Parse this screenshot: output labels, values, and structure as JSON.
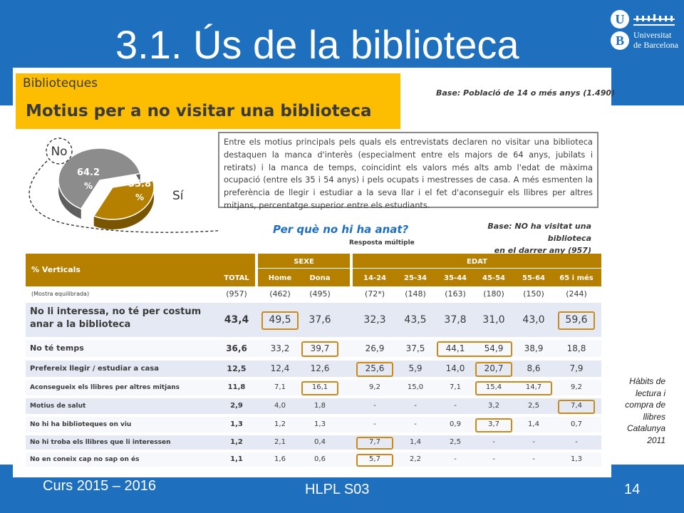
{
  "slide": {
    "title": "3.1. Ús de la biblioteca",
    "footer_left": "Curs 2015 – 2016",
    "footer_center": "HLPL S03",
    "page_number": "14",
    "side_note": "Hàbits de lectura i compra de llibres Catalunya 2011",
    "logo": {
      "letter_u": "U",
      "letter_b": "B",
      "line1": "Universitat",
      "line2": "de Barcelona"
    }
  },
  "colors": {
    "band": "#1f6fbf",
    "accent": "#fdbd00",
    "table_header": "#b57f00",
    "highlight": "#c98a1a",
    "row_shade": "#e4e9f3"
  },
  "header": {
    "section": "Biblioteques",
    "heading": "Motius per a no visitar una biblioteca",
    "base": "Base: Població de 14 o més anys (1.490)"
  },
  "summary_text": "Entre els motius principals pels quals els entrevistats declaren no visitar una biblioteca destaquen la manca d'interès (especialment entre els majors de 64 anys, jubilats i retirats) i la manca de temps, coincidint els valors més alts amb l'edat de màxima ocupació (entre els 35 i 54 anys) i pels ocupats i mestresses de casa. A més esmenten la preferència de llegir i estudiar a la seva llar i el fet d'aconseguir els llibres per altres mitjans, percentatge superior entre els estudiants.",
  "chart_data": {
    "type": "pie",
    "labels": [
      "No",
      "Sí"
    ],
    "values": [
      64.2,
      35.8
    ],
    "value_labels": [
      "64.2 %",
      "35.8 %"
    ],
    "colors": [
      "#8c8c8c",
      "#b57f00"
    ]
  },
  "question": {
    "title": "Per què no hi ha anat?",
    "subtitle": "Resposta múltiple",
    "base_line1": "Base: NO ha visitat una biblioteca",
    "base_line2": "en el darrer any (957)"
  },
  "table": {
    "corner_label": "% Verticals",
    "group_labels": {
      "sexe": "SEXE",
      "edat": "EDAT"
    },
    "columns": [
      "TOTAL",
      "Home",
      "Dona",
      "14-24",
      "25-34",
      "35-44",
      "45-54",
      "55-64",
      "65 i més"
    ],
    "sample_label": "(Mostra equilibrada)",
    "sample_sizes": [
      "(957)",
      "(462)",
      "(495)",
      "(72*)",
      "(148)",
      "(163)",
      "(180)",
      "(150)",
      "(244)"
    ],
    "rows": [
      {
        "label": "No li interessa, no té per costum anar a la biblioteca",
        "values": [
          "43,4",
          "49,5",
          "37,6",
          "32,3",
          "43,5",
          "37,8",
          "31,0",
          "43,0",
          "59,6"
        ]
      },
      {
        "label": "No té temps",
        "values": [
          "36,6",
          "33,2",
          "39,7",
          "26,9",
          "37,5",
          "44,1",
          "54,9",
          "38,9",
          "18,8"
        ]
      },
      {
        "label": "Prefereix llegir / estudiar a casa",
        "values": [
          "12,5",
          "12,4",
          "12,6",
          "25,6",
          "5,9",
          "14,0",
          "20,7",
          "8,6",
          "7,9"
        ]
      },
      {
        "label": "Aconsegueix els llibres per altres mitjans",
        "values": [
          "11,8",
          "7,1",
          "16,1",
          "9,2",
          "15,0",
          "7,1",
          "15,4",
          "14,7",
          "9,2"
        ]
      },
      {
        "label": "Motius de salut",
        "values": [
          "2,9",
          "4,0",
          "1,8",
          "-",
          "-",
          "-",
          "3,2",
          "2,5",
          "7,4"
        ]
      },
      {
        "label": "No hi ha biblioteques on viu",
        "values": [
          "1,3",
          "1,2",
          "1,3",
          "-",
          "-",
          "0,9",
          "3,7",
          "1,4",
          "0,7"
        ]
      },
      {
        "label": "No hi troba els llibres que li interessen",
        "values": [
          "1,2",
          "2,1",
          "0,4",
          "7,7",
          "1,4",
          "2,5",
          "-",
          "-",
          "-"
        ]
      },
      {
        "label": "No en coneix cap no sap on és",
        "values": [
          "1,1",
          "1,6",
          "0,6",
          "5,7",
          "2,2",
          "-",
          "-",
          "-",
          "1,3"
        ]
      }
    ]
  }
}
